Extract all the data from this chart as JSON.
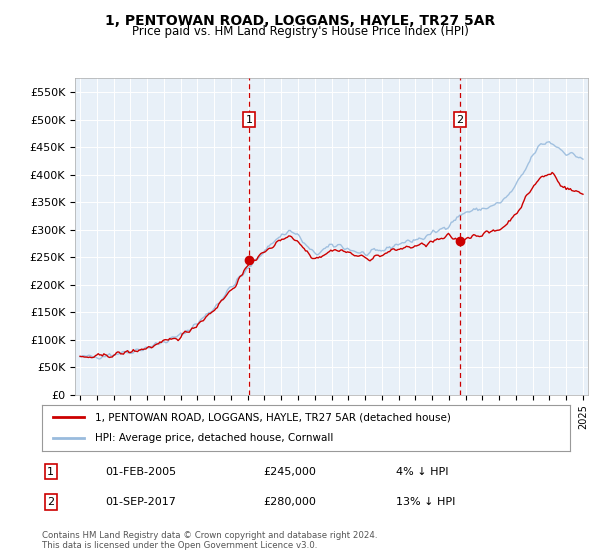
{
  "title": "1, PENTOWAN ROAD, LOGGANS, HAYLE, TR27 5AR",
  "subtitle": "Price paid vs. HM Land Registry's House Price Index (HPI)",
  "property_label": "1, PENTOWAN ROAD, LOGGANS, HAYLE, TR27 5AR (detached house)",
  "hpi_label": "HPI: Average price, detached house, Cornwall",
  "transaction1_date": "01-FEB-2005",
  "transaction1_price": "£245,000",
  "transaction1_hpi": "4% ↓ HPI",
  "transaction2_date": "01-SEP-2017",
  "transaction2_price": "£280,000",
  "transaction2_hpi": "13% ↓ HPI",
  "footer": "Contains HM Land Registry data © Crown copyright and database right 2024.\nThis data is licensed under the Open Government Licence v3.0.",
  "ylim": [
    0,
    575000
  ],
  "yticks": [
    0,
    50000,
    100000,
    150000,
    200000,
    250000,
    300000,
    350000,
    400000,
    450000,
    500000,
    550000
  ],
  "ytick_labels": [
    "£0",
    "£50K",
    "£100K",
    "£150K",
    "£200K",
    "£250K",
    "£300K",
    "£350K",
    "£400K",
    "£450K",
    "£500K",
    "£550K"
  ],
  "property_color": "#cc0000",
  "hpi_color": "#99bbdd",
  "vline_color": "#cc0000",
  "dot_color": "#cc0000",
  "plot_bg_color": "#e8f0f8",
  "grid_color": "#ffffff",
  "box_edge_color": "#cc0000",
  "t1_x": 2005.08,
  "t2_x": 2017.67,
  "t1_y": 245000,
  "t2_y": 280000,
  "xlim_left": 1994.7,
  "xlim_right": 2025.3
}
